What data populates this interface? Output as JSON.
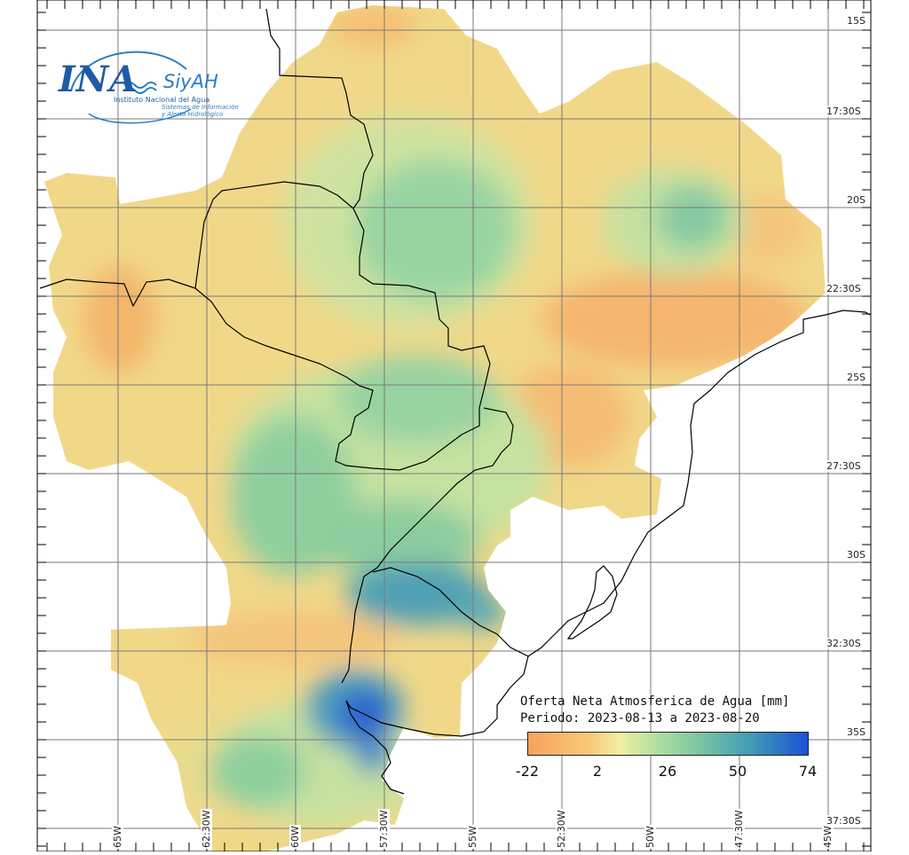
{
  "logo": {
    "brand": "INA",
    "system": "SiyAH",
    "institute": "Instituto Nacional del Agua",
    "system_full_line1": "Sistemas de Información",
    "system_full_line2": "y Alerta Hidrológico"
  },
  "legend": {
    "title": "Oferta Neta Atmosferica de Agua [mm]",
    "period": "Periodo: 2023-08-13 a 2023-08-20",
    "ticks": [
      "-22",
      "2",
      "26",
      "50",
      "74"
    ],
    "colors": {
      "low": "#f7a35c",
      "mid_low": "#eef0a0",
      "mid": "#79c3a3",
      "high": "#1d4fd6"
    }
  },
  "latitude_labels": [
    "15S",
    "17:30S",
    "20S",
    "22:30S",
    "25S",
    "27:30S",
    "30S",
    "32:30S",
    "35S",
    "37:30S"
  ],
  "longitude_labels": [
    "65W",
    "62:30W",
    "60W",
    "57:30W",
    "55W",
    "52:30W",
    "50W",
    "47:30W",
    "45W"
  ],
  "colors": {
    "gridline": "#7a7a7a",
    "border": "#000000",
    "frame": "#000000"
  }
}
